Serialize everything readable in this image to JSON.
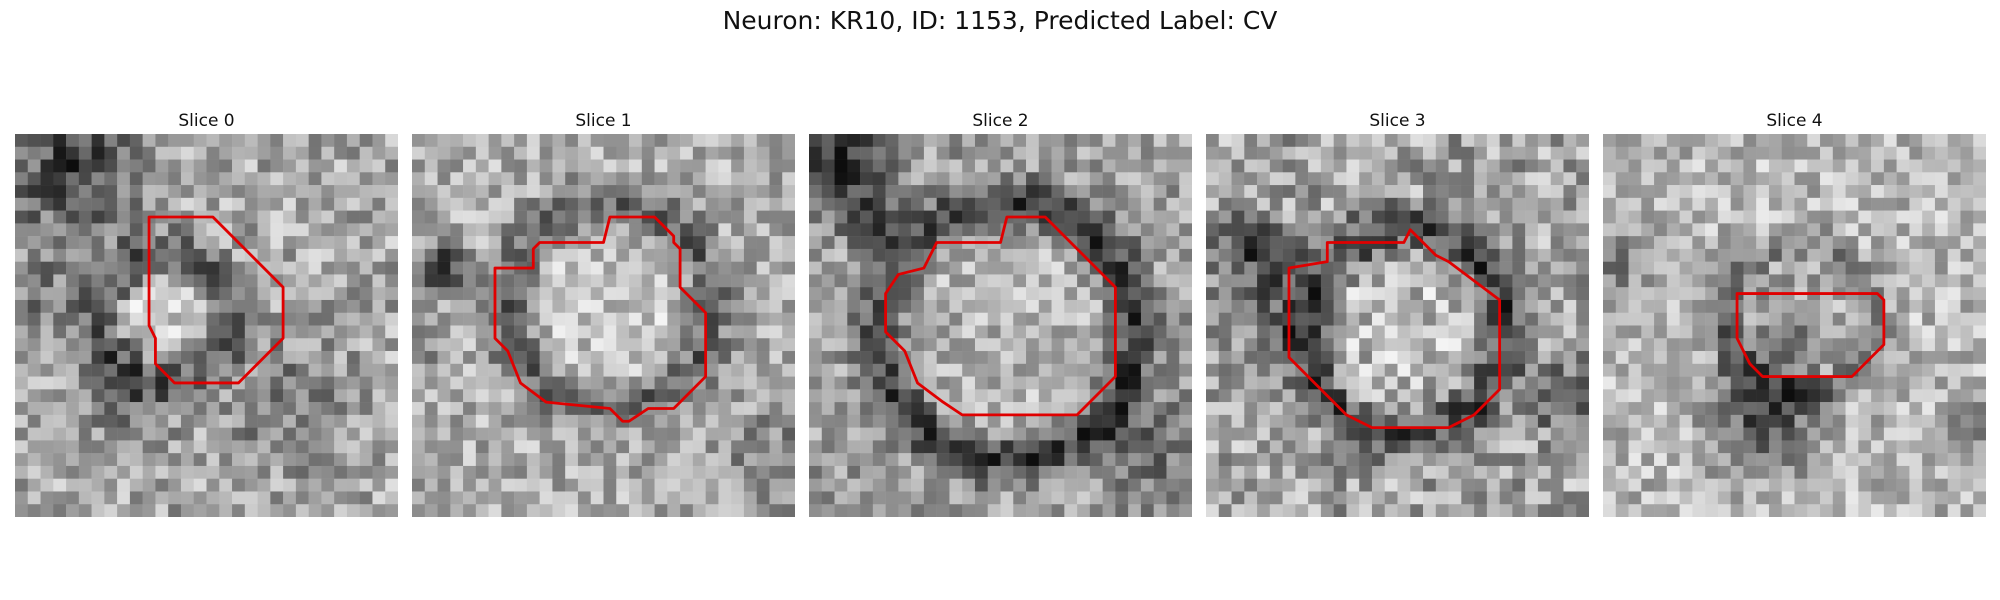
{
  "figure": {
    "title": "Neuron: KR10, ID: 1153, Predicted Label: CV"
  },
  "slices": [
    {
      "title": "Slice 0",
      "seed": 11,
      "dark_regions": "upper-left dark band, ring around center"
    },
    {
      "title": "Slice 1",
      "seed": 23,
      "dark_regions": "ring around large bright body"
    },
    {
      "title": "Slice 2",
      "seed": 37,
      "dark_regions": "thick dark ring, bright interior"
    },
    {
      "title": "Slice 3",
      "seed": 41,
      "dark_regions": "dark ring, noisy surround"
    },
    {
      "title": "Slice 4",
      "seed": 53,
      "dark_regions": "dark blob lower-center"
    }
  ],
  "contour_color": "#e00000",
  "colormap": "gray"
}
